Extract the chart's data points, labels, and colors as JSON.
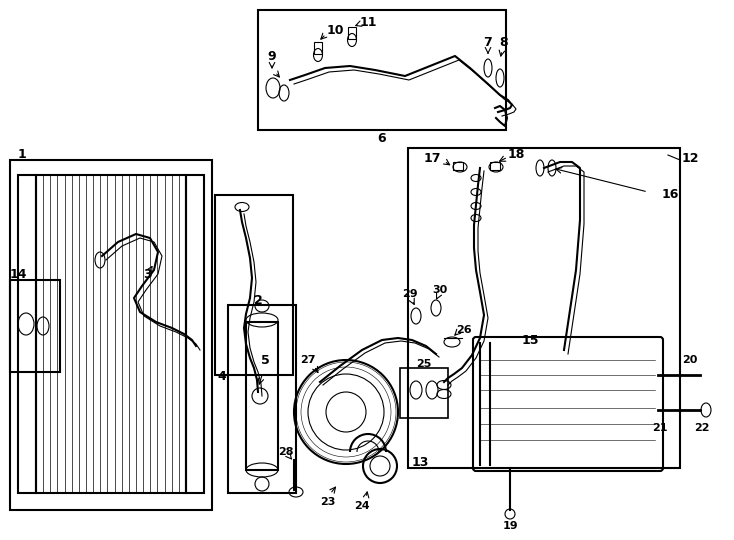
{
  "bg_color": "#ffffff",
  "line_color": "#000000",
  "line_width": 1.5,
  "thin_line": 0.8,
  "label_fontsize": 9,
  "figsize": [
    7.34,
    5.4
  ],
  "dpi": 100
}
